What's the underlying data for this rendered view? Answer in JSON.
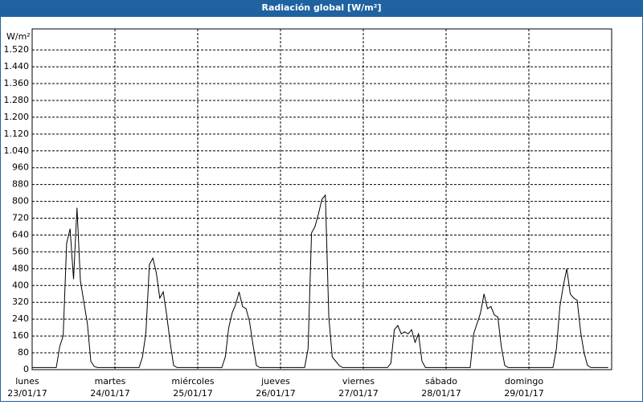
{
  "chart_data": {
    "type": "line",
    "title": "Radiación global [W/m²]",
    "y_label": "W/m²",
    "x_labels": [
      {
        "day": "lunes",
        "date": "23/01/17"
      },
      {
        "day": "martes",
        "date": "24/01/17"
      },
      {
        "day": "miércoles",
        "date": "25/01/17"
      },
      {
        "day": "jueves",
        "date": "26/01/17"
      },
      {
        "day": "viernes",
        "date": "27/01/17"
      },
      {
        "day": "sábado",
        "date": "28/01/17"
      },
      {
        "day": "domingo",
        "date": "29/01/17"
      }
    ],
    "color": "#000000",
    "values": [
      10,
      10,
      10,
      10,
      10,
      10,
      10,
      10,
      110,
      160,
      600,
      670,
      430,
      770,
      420,
      320,
      220,
      40,
      15,
      10,
      10,
      10,
      10,
      10,
      10,
      10,
      10,
      10,
      10,
      10,
      10,
      10,
      60,
      180,
      500,
      530,
      460,
      340,
      370,
      260,
      130,
      20,
      10,
      10,
      10,
      10,
      10,
      10,
      10,
      10,
      10,
      10,
      10,
      10,
      10,
      10,
      60,
      200,
      270,
      310,
      370,
      300,
      290,
      230,
      120,
      20,
      10,
      10,
      10,
      10,
      10,
      10,
      10,
      10,
      10,
      10,
      10,
      10,
      10,
      10,
      100,
      650,
      680,
      740,
      810,
      830,
      250,
      60,
      40,
      20,
      10,
      10,
      10,
      10,
      10,
      10,
      10,
      10,
      10,
      10,
      10,
      10,
      10,
      10,
      30,
      190,
      210,
      170,
      180,
      170,
      190,
      130,
      170,
      40,
      10,
      10,
      10,
      10,
      10,
      10,
      10,
      10,
      10,
      10,
      10,
      10,
      10,
      10,
      170,
      220,
      270,
      360,
      290,
      300,
      260,
      250,
      110,
      20,
      10,
      10,
      10,
      10,
      10,
      10,
      10,
      10,
      10,
      10,
      10,
      10,
      10,
      10,
      100,
      300,
      400,
      480,
      360,
      340,
      330,
      180,
      80,
      20,
      10,
      10,
      10,
      10,
      10,
      10
    ],
    "ylim": [
      0,
      1620
    ],
    "yticks": [
      0,
      80,
      160,
      240,
      320,
      400,
      480,
      560,
      640,
      720,
      800,
      880,
      960,
      {
        "value": 1040,
        "label": "1.040"
      },
      {
        "value": 1120,
        "label": "1.120"
      },
      {
        "value": 1200,
        "label": "1.200"
      },
      {
        "value": 1280,
        "label": "1.280"
      },
      {
        "value": 1360,
        "label": "1.360"
      },
      {
        "value": 1440,
        "label": "1.440"
      },
      {
        "value": 1520,
        "label": "1.520"
      }
    ],
    "grid": true
  }
}
